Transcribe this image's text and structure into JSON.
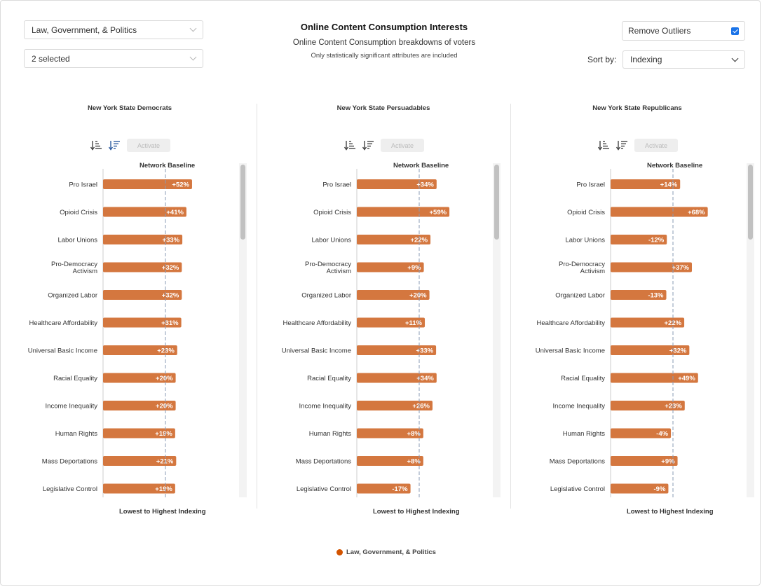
{
  "filters": {
    "category_value": "Law, Government, & Politics",
    "segments_value": "2 selected"
  },
  "header": {
    "title": "Online Content Consumption Interests",
    "subtitle": "Online Content Consumption breakdowns of voters",
    "note": "Only statistically significant attributes are included"
  },
  "controls": {
    "remove_outliers_label": "Remove Outliers",
    "remove_outliers_checked": true,
    "sort_label": "Sort by:",
    "sort_value": "Indexing",
    "activate_label": "Activate",
    "baseline_label": "Network Baseline",
    "footer_label": "Lowest to Highest Indexing"
  },
  "legend": {
    "label": "Law, Government, & Politics"
  },
  "colors": {
    "bar": "#d4773f",
    "legend_dot": "#d35400",
    "baseline": "#8a9bb5",
    "axis": "#cccccc",
    "active_sort": "#2c5aa0"
  },
  "chart_data": [
    {
      "type": "bar",
      "title": "New York State Democrats",
      "categories": [
        "Pro Israel",
        "Opioid Crisis",
        "Labor Unions",
        "Pro-Democracy Activism",
        "Organized Labor",
        "Healthcare Affordability",
        "Universal Basic Income",
        "Racial Equality",
        "Income Inequality",
        "Human Rights",
        "Mass Deportations",
        "Legislative Control"
      ],
      "values": [
        52,
        41,
        33,
        32,
        32,
        31,
        23,
        20,
        20,
        19,
        21,
        19
      ],
      "labels": [
        "+52%",
        "+41%",
        "+33%",
        "+32%",
        "+32%",
        "+31%",
        "+23%",
        "+20%",
        "+20%",
        "+19%",
        "+21%",
        "+19%"
      ],
      "baseline": 0,
      "orientation": "horizontal"
    },
    {
      "type": "bar",
      "title": "New York State Persuadables",
      "categories": [
        "Pro Israel",
        "Opioid Crisis",
        "Labor Unions",
        "Pro-Democracy Activism",
        "Organized Labor",
        "Healthcare Affordability",
        "Universal Basic Income",
        "Racial Equality",
        "Income Inequality",
        "Human Rights",
        "Mass Deportations",
        "Legislative Control"
      ],
      "values": [
        34,
        59,
        22,
        9,
        20,
        11,
        33,
        34,
        26,
        8,
        8,
        -17
      ],
      "labels": [
        "+34%",
        "+59%",
        "+22%",
        "+9%",
        "+20%",
        "+11%",
        "+33%",
        "+34%",
        "+26%",
        "+8%",
        "+8%",
        "-17%"
      ],
      "baseline": 0,
      "orientation": "horizontal"
    },
    {
      "type": "bar",
      "title": "New York State Republicans",
      "categories": [
        "Pro Israel",
        "Opioid Crisis",
        "Labor Unions",
        "Pro-Democracy Activism",
        "Organized Labor",
        "Healthcare Affordability",
        "Universal Basic Income",
        "Racial Equality",
        "Income Inequality",
        "Human Rights",
        "Mass Deportations",
        "Legislative Control"
      ],
      "values": [
        14,
        68,
        -12,
        37,
        -13,
        22,
        32,
        49,
        23,
        -4,
        9,
        -9
      ],
      "labels": [
        "+14%",
        "+68%",
        "-12%",
        "+37%",
        "-13%",
        "+22%",
        "+32%",
        "+49%",
        "+23%",
        "-4%",
        "+9%",
        "-9%"
      ],
      "baseline": 0,
      "orientation": "horizontal"
    }
  ]
}
